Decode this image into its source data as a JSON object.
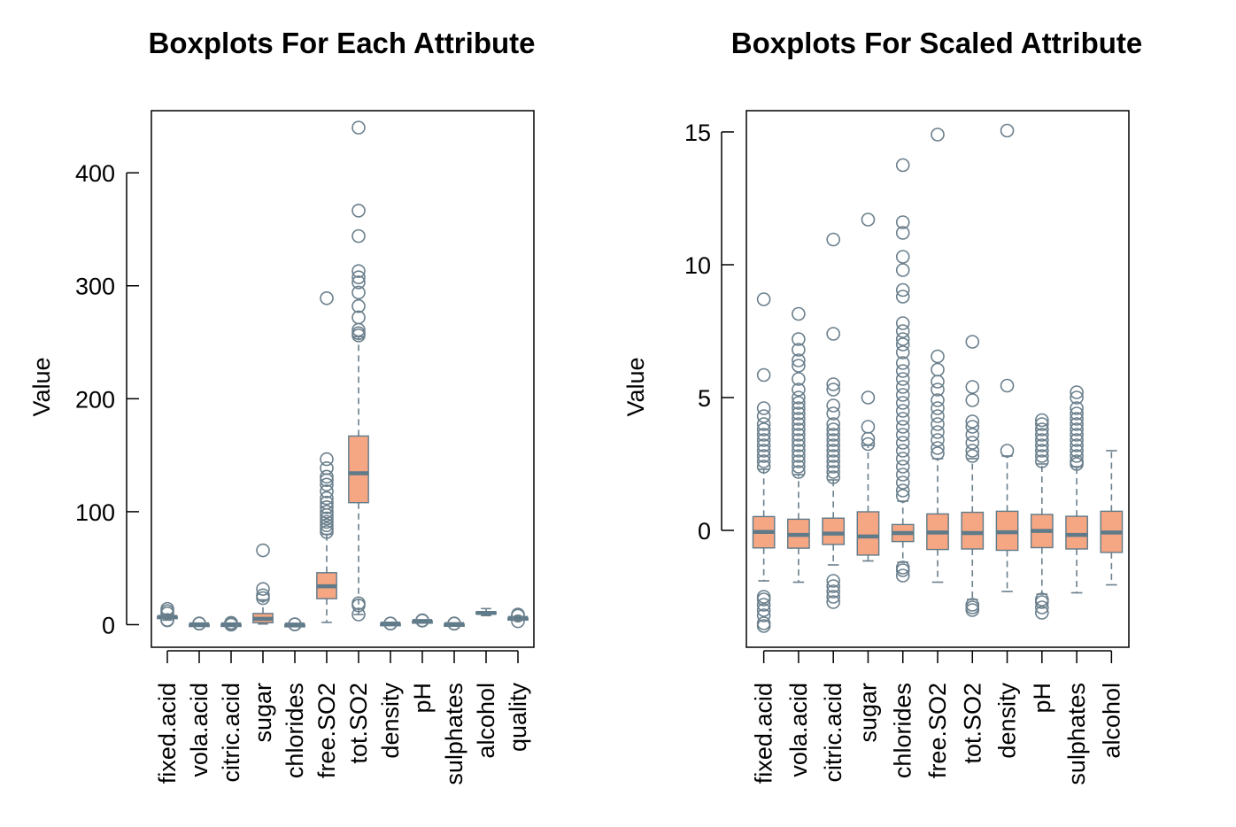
{
  "colors": {
    "box_fill": "#F5A683",
    "box_border": "#5F7A89",
    "median": "#5F7A89",
    "whisker": "#6A7F8C",
    "outlier": "#6A7F8C"
  },
  "chart_data": [
    {
      "type": "box",
      "title": "Boxplots For Each Attribute",
      "xlabel": "",
      "ylabel": "Value",
      "ylim": [
        -20,
        455
      ],
      "yticks": [
        0,
        100,
        200,
        300,
        400
      ],
      "ytick_labels": [
        "0",
        "100",
        "200",
        "300",
        "400"
      ],
      "grid": false,
      "categories": [
        "fixed.acid",
        "vola.acid",
        "citric.acid",
        "sugar",
        "chlorides",
        "free.SO2",
        "tot.SO2",
        "density",
        "pH",
        "sulphates",
        "alcohol",
        "quality"
      ],
      "boxes": [
        {
          "name": "fixed.acid",
          "whislo": 4,
          "q1": 6.3,
          "med": 6.8,
          "q3": 7.3,
          "whishi": 8.8,
          "fliers": [
            14,
            12,
            10,
            3.8,
            4.2
          ]
        },
        {
          "name": "vola.acid",
          "whislo": 0.1,
          "q1": 0.21,
          "med": 0.26,
          "q3": 0.32,
          "whishi": 0.5,
          "fliers": [
            1.1,
            0.9
          ]
        },
        {
          "name": "citric.acid",
          "whislo": 0.1,
          "q1": 0.27,
          "med": 0.32,
          "q3": 0.39,
          "whishi": 0.6,
          "fliers": [
            1.66,
            1.2,
            0
          ]
        },
        {
          "name": "sugar",
          "whislo": 0.6,
          "q1": 1.7,
          "med": 5.2,
          "q3": 9.9,
          "whishi": 22,
          "fliers": [
            65.8,
            31.6,
            26,
            23.5
          ]
        },
        {
          "name": "chlorides",
          "whislo": 0.01,
          "q1": 0.036,
          "med": 0.043,
          "q3": 0.05,
          "whishi": 0.07,
          "fliers": [
            0.35,
            0.2
          ]
        },
        {
          "name": "free.SO2",
          "whislo": 2,
          "q1": 23,
          "med": 34,
          "q3": 46,
          "whishi": 80,
          "fliers": [
            289,
            146.5,
            138.5,
            131,
            128,
            124,
            118,
            112,
            108,
            104,
            100,
            97,
            94,
            91,
            88,
            85,
            82
          ]
        },
        {
          "name": "tot.SO2",
          "whislo": 9,
          "q1": 108,
          "med": 134,
          "q3": 167,
          "whishi": 255,
          "fliers": [
            440,
            366.5,
            344,
            313,
            307.5,
            303,
            294,
            282,
            272,
            261,
            258,
            256,
            19,
            17,
            9
          ]
        },
        {
          "name": "density",
          "whislo": 0.987,
          "q1": 0.992,
          "med": 0.994,
          "q3": 0.996,
          "whishi": 1.002,
          "fliers": [
            1.039,
            1.01
          ]
        },
        {
          "name": "pH",
          "whislo": 2.72,
          "q1": 3.09,
          "med": 3.18,
          "q3": 3.28,
          "whishi": 3.57,
          "fliers": [
            3.82,
            3.7,
            3.6
          ]
        },
        {
          "name": "sulphates",
          "whislo": 0.22,
          "q1": 0.41,
          "med": 0.47,
          "q3": 0.55,
          "whishi": 0.76,
          "fliers": [
            1.08,
            0.9
          ]
        },
        {
          "name": "alcohol",
          "whislo": 8,
          "q1": 9.5,
          "med": 10.4,
          "q3": 11.4,
          "whishi": 14.2,
          "fliers": []
        },
        {
          "name": "quality",
          "whislo": 4,
          "q1": 5,
          "med": 6,
          "q3": 6,
          "whishi": 7,
          "fliers": [
            9,
            8,
            3
          ]
        }
      ]
    },
    {
      "type": "box",
      "title": "Boxplots For Scaled Attribute",
      "xlabel": "",
      "ylabel": "Value",
      "ylim": [
        -4.4,
        15.8
      ],
      "yticks": [
        0,
        5,
        10,
        15
      ],
      "ytick_labels": [
        "0",
        "5",
        "10",
        "15"
      ],
      "grid": false,
      "categories": [
        "fixed.acid",
        "vola.acid",
        "citric.acid",
        "sugar",
        "chlorides",
        "free.SO2",
        "tot.SO2",
        "density",
        "pH",
        "sulphates",
        "alcohol"
      ],
      "boxes": [
        {
          "name": "fixed.acid",
          "whislo": -1.9,
          "q1": -0.66,
          "med": -0.06,
          "q3": 0.52,
          "whishi": 2.3,
          "fliers": [
            8.7,
            5.85,
            4.6,
            4.3,
            4.0,
            3.8,
            3.6,
            3.4,
            3.2,
            3.0,
            2.8,
            2.6,
            2.4,
            -2.5,
            -2.6,
            -2.8,
            -3.0,
            -3.2,
            -3.5,
            -3.6
          ]
        },
        {
          "name": "vola.acid",
          "whislo": -1.95,
          "q1": -0.67,
          "med": -0.17,
          "q3": 0.42,
          "whishi": 2.1,
          "fliers": [
            8.15,
            7.2,
            6.8,
            6.4,
            6.2,
            5.7,
            5.3,
            5.0,
            4.8,
            4.6,
            4.4,
            4.2,
            4.0,
            3.8,
            3.6,
            3.4,
            3.2,
            3.0,
            2.8,
            2.6,
            2.4,
            2.2
          ]
        },
        {
          "name": "citric.acid",
          "whislo": -1.3,
          "q1": -0.53,
          "med": -0.12,
          "q3": 0.46,
          "whishi": 1.9,
          "fliers": [
            10.95,
            7.4,
            5.5,
            5.3,
            4.7,
            4.4,
            4.0,
            3.8,
            3.6,
            3.4,
            3.2,
            3.0,
            2.8,
            2.6,
            2.4,
            2.2,
            2.0,
            -1.9,
            -2.1,
            -2.3,
            -2.5,
            -2.7
          ]
        },
        {
          "name": "sugar",
          "whislo": -1.15,
          "q1": -0.93,
          "med": -0.23,
          "q3": 0.7,
          "whishi": 3.2,
          "fliers": [
            11.7,
            5.0,
            3.9,
            3.45,
            3.25
          ]
        },
        {
          "name": "chlorides",
          "whislo": -1.2,
          "q1": -0.42,
          "med": -0.1,
          "q3": 0.22,
          "whishi": 1.1,
          "fliers": [
            13.75,
            11.6,
            11.2,
            10.3,
            9.8,
            9.05,
            8.8,
            7.8,
            7.5,
            7.2,
            7.0,
            6.7,
            6.3,
            6.0,
            5.7,
            5.4,
            5.1,
            4.8,
            4.5,
            4.2,
            3.9,
            3.6,
            3.3,
            3.0,
            2.7,
            2.4,
            2.1,
            1.8,
            1.5,
            1.3,
            -1.4,
            -1.5,
            -1.7
          ]
        },
        {
          "name": "free.SO2",
          "whislo": -1.95,
          "q1": -0.72,
          "med": -0.08,
          "q3": 0.62,
          "whishi": 2.7,
          "fliers": [
            14.9,
            6.55,
            6.05,
            5.6,
            5.3,
            4.9,
            4.6,
            4.3,
            4.0,
            3.7,
            3.4,
            3.1,
            2.9
          ]
        },
        {
          "name": "tot.SO2",
          "whislo": -2.6,
          "q1": -0.7,
          "med": -0.1,
          "q3": 0.68,
          "whishi": 2.7,
          "fliers": [
            7.1,
            5.4,
            4.9,
            4.1,
            3.9,
            3.6,
            3.3,
            3.0,
            2.8,
            -2.8,
            -2.9,
            -3.0
          ]
        },
        {
          "name": "density",
          "whislo": -2.3,
          "q1": -0.75,
          "med": -0.07,
          "q3": 0.72,
          "whishi": 2.8,
          "fliers": [
            15.05,
            5.45,
            3.0
          ]
        },
        {
          "name": "pH",
          "whislo": -2.4,
          "q1": -0.65,
          "med": -0.02,
          "q3": 0.6,
          "whishi": 2.5,
          "fliers": [
            4.15,
            4.0,
            3.8,
            3.6,
            3.4,
            3.2,
            3.0,
            2.8,
            2.6,
            -2.6,
            -2.7,
            -2.9,
            -3.1
          ]
        },
        {
          "name": "sulphates",
          "whislo": -2.35,
          "q1": -0.7,
          "med": -0.17,
          "q3": 0.53,
          "whishi": 2.4,
          "fliers": [
            5.2,
            5.0,
            4.6,
            4.4,
            4.2,
            4.0,
            3.8,
            3.6,
            3.4,
            3.2,
            3.0,
            2.8,
            2.6,
            2.5
          ]
        },
        {
          "name": "alcohol",
          "whislo": -2.05,
          "q1": -0.83,
          "med": -0.08,
          "q3": 0.72,
          "whishi": 3.0,
          "fliers": []
        }
      ]
    }
  ]
}
